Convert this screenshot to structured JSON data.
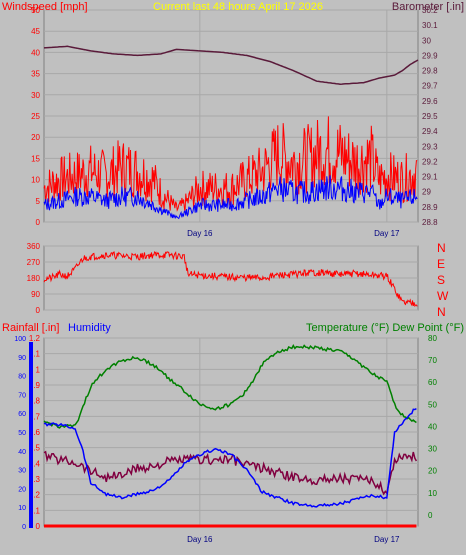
{
  "chart_data": [
    {
      "type": "line",
      "title": "Current last 48 hours April 17 2026",
      "left_axis_label": "Windspeed [mph]",
      "right_axis_label": "Barometer [.in]",
      "left_ticks": [
        "0",
        "5",
        "10",
        "15",
        "20",
        "25",
        "30",
        "35",
        "40",
        "45",
        "50"
      ],
      "right_ticks": [
        "28.8",
        "28.9",
        "29",
        "29.1",
        "29.2",
        "29.3",
        "29.4",
        "29.5",
        "29.6",
        "29.7",
        "29.8",
        "29.9",
        "30",
        "30.1",
        "30.2"
      ],
      "ylim_left": [
        0,
        50
      ],
      "ylim_right": [
        28.8,
        30.2
      ],
      "x_ticks": [
        {
          "label": "Day 16",
          "hour": 20
        },
        {
          "label": "Day 17",
          "hour": 44
        }
      ],
      "xlim_hours": [
        0,
        48
      ],
      "grid": true,
      "colors": {
        "gust": "#ff0000",
        "average": "#0000ff",
        "barometer": "#5a1a3a"
      },
      "series": [
        {
          "key": "gust",
          "axis": "left",
          "x": [
            0,
            2,
            4,
            6,
            8,
            10,
            12,
            14,
            15,
            16,
            17,
            18,
            20,
            22,
            24,
            26,
            28,
            30,
            32,
            34,
            36,
            38,
            40,
            42,
            43,
            44,
            46,
            48
          ],
          "y": [
            8,
            10,
            11,
            12,
            11,
            13,
            12,
            10,
            7,
            5,
            3,
            4,
            8,
            8,
            8,
            10,
            12,
            16,
            14,
            15,
            17,
            16,
            14,
            15,
            10,
            11,
            10,
            12
          ]
        },
        {
          "key": "average",
          "axis": "left",
          "x": [
            0,
            2,
            4,
            6,
            8,
            10,
            12,
            14,
            15,
            16,
            17,
            18,
            20,
            22,
            24,
            26,
            28,
            30,
            32,
            34,
            36,
            38,
            40,
            42,
            43,
            44,
            46,
            48
          ],
          "y": [
            4,
            5,
            6,
            6,
            5,
            6,
            6,
            4,
            3,
            2,
            1,
            2,
            4,
            4,
            4,
            5,
            6,
            8,
            7,
            7,
            8,
            8,
            7,
            7,
            4,
            6,
            5,
            6
          ]
        },
        {
          "key": "barometer",
          "axis": "right",
          "x": [
            0,
            3,
            6,
            9,
            12,
            15,
            17,
            20,
            23,
            26,
            29,
            32,
            35,
            38,
            41,
            43,
            45,
            46,
            47,
            48
          ],
          "y": [
            29.95,
            29.96,
            29.93,
            29.91,
            29.9,
            29.91,
            29.94,
            29.93,
            29.92,
            29.9,
            29.86,
            29.8,
            29.73,
            29.71,
            29.72,
            29.75,
            29.77,
            29.8,
            29.84,
            29.87
          ]
        }
      ]
    },
    {
      "type": "line",
      "left_ticks": [
        "0",
        "90",
        "180",
        "270",
        "360"
      ],
      "right_labels": [
        "N",
        "W",
        "S",
        "E",
        "N"
      ],
      "ylim": [
        0,
        360
      ],
      "xlim_hours": [
        0,
        48
      ],
      "grid": true,
      "colors": {
        "direction": "#ff0000"
      },
      "series": [
        {
          "key": "direction",
          "x": [
            0,
            1,
            2,
            3,
            4,
            5,
            6,
            8,
            10,
            12,
            14,
            16,
            18,
            18.5,
            20,
            24,
            28,
            30,
            32,
            34,
            36,
            38,
            40,
            44,
            46,
            48
          ],
          "y": [
            175,
            180,
            200,
            190,
            230,
            290,
            300,
            310,
            305,
            300,
            310,
            310,
            300,
            200,
            195,
            185,
            180,
            195,
            200,
            210,
            210,
            200,
            205,
            190,
            45,
            40
          ]
        }
      ]
    },
    {
      "type": "line",
      "left_axis_label": "Rainfall [.in]",
      "left_axis_label2": "Humidity",
      "right_axis_label": "Temperature (°F) Dew Point (°F)",
      "humidity_ticks": [
        "0",
        "10",
        "20",
        "30",
        "40",
        "50",
        "60",
        "70",
        "80",
        "90",
        "100"
      ],
      "rain_ticks": [
        "0",
        "0.1",
        "0.2",
        "0.3",
        "0.4",
        "0.5",
        "0.6",
        "0.7",
        "0.8",
        "0.9",
        "1",
        "1.1",
        "1.2"
      ],
      "temp_ticks": [
        "0",
        "10",
        "20",
        "30",
        "40",
        "50",
        "60",
        "70",
        "80"
      ],
      "ylim_humidity": [
        0,
        100
      ],
      "ylim_rain": [
        0,
        1.2
      ],
      "ylim_temp": [
        -5,
        80
      ],
      "x_ticks": [
        {
          "label": "Day 16",
          "hour": 20
        },
        {
          "label": "Day 17",
          "hour": 44
        }
      ],
      "xlim_hours": [
        0,
        48
      ],
      "grid": true,
      "colors": {
        "temperature": "#008000",
        "dewpoint": "#800040",
        "humidity": "#0000ff",
        "rain": "#ff0000"
      },
      "series": [
        {
          "key": "temperature",
          "axis": "temp",
          "x": [
            0,
            2,
            4,
            6,
            8,
            10,
            12,
            14,
            16,
            18,
            20,
            22,
            24,
            26,
            28,
            30,
            32,
            34,
            36,
            38,
            40,
            42,
            43,
            44,
            45,
            46,
            48
          ],
          "y": [
            42,
            40,
            40,
            58,
            66,
            70,
            71,
            68,
            62,
            56,
            50,
            48,
            50,
            56,
            68,
            74,
            76,
            76,
            75,
            74,
            70,
            64,
            62,
            60,
            50,
            45,
            42
          ]
        },
        {
          "key": "dewpoint",
          "axis": "temp",
          "x": [
            0,
            2,
            4,
            6,
            8,
            10,
            12,
            14,
            16,
            18,
            20,
            22,
            24,
            26,
            28,
            30,
            32,
            34,
            36,
            38,
            40,
            42,
            43,
            44,
            45,
            46,
            48
          ],
          "y": [
            27,
            25,
            24,
            20,
            17,
            18,
            21,
            22,
            24,
            25,
            25,
            25,
            25,
            23,
            21,
            19,
            17,
            16,
            16,
            17,
            16,
            15,
            14,
            10,
            25,
            27,
            26
          ]
        },
        {
          "key": "humidity",
          "axis": "humidity",
          "x": [
            0,
            2,
            4,
            5,
            6,
            8,
            10,
            12,
            14,
            16,
            18,
            20,
            22,
            24,
            26,
            28,
            30,
            32,
            34,
            36,
            38,
            40,
            42,
            43,
            44,
            45,
            46,
            48
          ],
          "y": [
            54,
            54,
            52,
            40,
            23,
            17,
            15,
            17,
            19,
            24,
            33,
            38,
            41,
            38,
            30,
            18,
            15,
            12,
            11,
            11,
            12,
            14,
            16,
            16,
            15,
            50,
            55,
            64
          ]
        },
        {
          "key": "rain",
          "axis": "rain",
          "x": [
            0,
            48
          ],
          "y": [
            0,
            0
          ]
        }
      ]
    }
  ]
}
